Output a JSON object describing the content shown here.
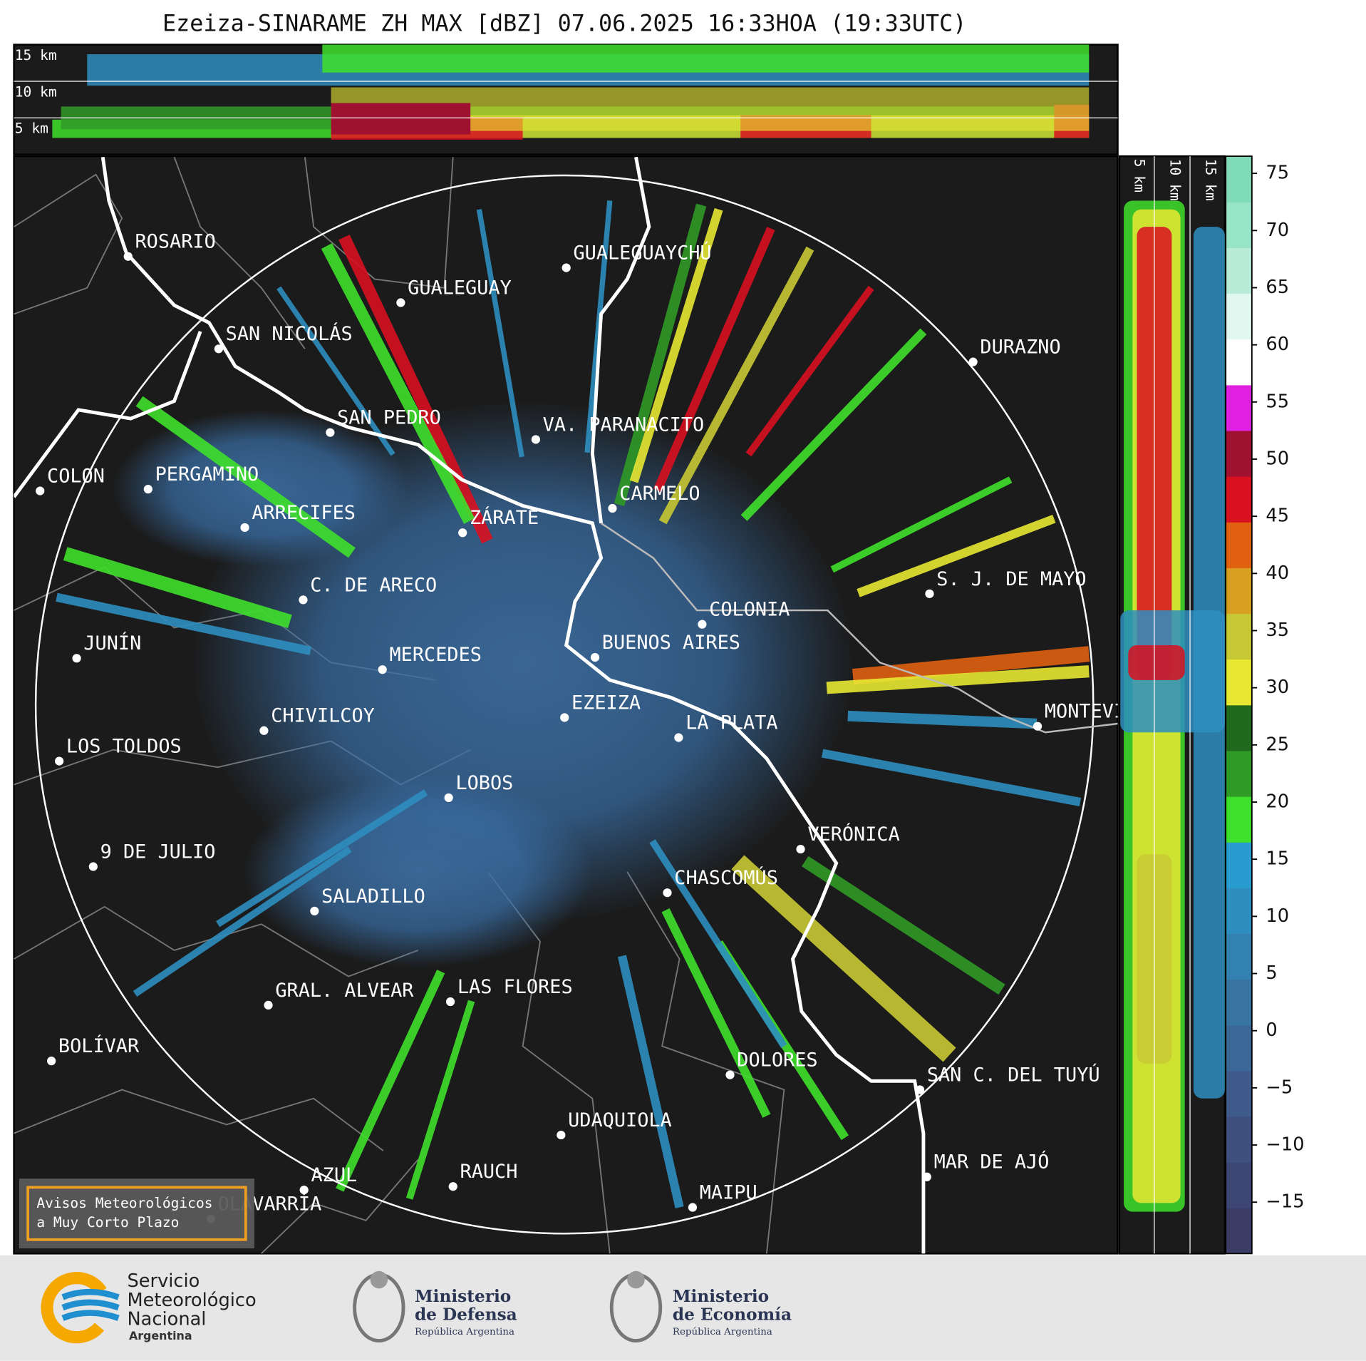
{
  "title": "Ezeiza-SINARAME ZH MAX [dBZ] 07.06.2025 16:33HOA (19:33UTC)",
  "top_panel": {
    "height_labels": [
      "15 km",
      "10 km",
      "5 km"
    ]
  },
  "side_panel": {
    "height_labels": [
      "5 km",
      "10 km",
      "15 km"
    ]
  },
  "cities": [
    "ROSARIO",
    "GUALEGUAYCHÚ",
    "GUALEGUAY",
    "SAN NICOLÁS",
    "DURAZNO",
    "SAN PEDRO",
    "VA. PARANACITO",
    "COLON",
    "PERGAMINO",
    "CARMELO",
    "ARRECIFES",
    "ZÁRATE",
    "C. DE ARECO",
    "S. J. DE MAYO",
    "COLONIA",
    "JUNÍN",
    "BUENOS AIRES",
    "MERCEDES",
    "EZEIZA",
    "MONTEVIDEO",
    "CHIVILCOY",
    "LA PLATA",
    "LOS TOLDOS",
    "LOBOS",
    "VERÓNICA",
    "9 DE JULIO",
    "CHASCOMÚS",
    "SALADILLO",
    "GRAL. ALVEAR",
    "LAS FLORES",
    "BOLÍVAR",
    "DOLORES",
    "SAN C. DEL TUYÚ",
    "UDAQUIOLA",
    "MAR DE AJÓ",
    "RAUCH",
    "AZUL",
    "OLAVARRÍA",
    "MAIPU"
  ],
  "warning_box": {
    "lines": [
      "Avisos Meteorológicos",
      "a Muy Corto Plazo"
    ]
  },
  "colorbar": {
    "lim": [
      -19.5,
      76.5
    ],
    "ticks": [
      75,
      70,
      65,
      60,
      55,
      50,
      45,
      40,
      35,
      30,
      25,
      20,
      15,
      10,
      5,
      0,
      {
        "value": -5,
        "label": "−5"
      },
      {
        "value": -10,
        "label": "−10"
      },
      {
        "value": -15,
        "label": "−15"
      }
    ],
    "colors": [
      "#3a3c66",
      "#3c4574",
      "#3e4f80",
      "#3e5b8c",
      "#3c6897",
      "#3774a2",
      "#3381b0",
      "#2e8ebf",
      "#299ccf",
      "#3fe02c",
      "#2f9a26",
      "#1f6a1c",
      "#e8e832",
      "#c8c834",
      "#d8a020",
      "#e06010",
      "#d81020",
      "#a01030",
      "#e020e0",
      "#ffffff",
      "#e0f8f0",
      "#b8ecd8",
      "#98e4c8",
      "#80dcb8"
    ]
  },
  "logos": {
    "smn": [
      "Servicio",
      "Meteorológico",
      "Nacional",
      "Argentina"
    ],
    "defensa": [
      "Ministerio",
      "de Defensa",
      "República Argentina"
    ],
    "economia": [
      "Ministerio",
      "de Economía",
      "República Argentina"
    ]
  }
}
